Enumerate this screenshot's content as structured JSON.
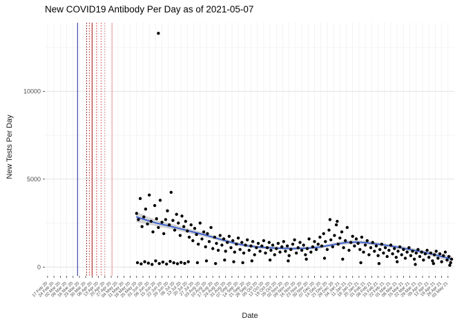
{
  "chart_data": {
    "type": "scatter",
    "title": "New COVID19 Antibody Per Day as of 2021-05-07",
    "xlabel": "Date",
    "ylabel": "New Tests Per Day",
    "legend": "none",
    "grid": true,
    "y_ticks": [
      0,
      5000,
      10000
    ],
    "y_tick_labels": [
      "0",
      "5000",
      "10000"
    ],
    "y_minor": [
      2500,
      7500,
      12500
    ],
    "ylim": [
      -500,
      13900
    ],
    "xlim": [
      -3,
      448
    ],
    "x_tick_interval_days": 7,
    "x_tick_labels": [
      "17 Feb 20",
      "24 Feb 20",
      "02 Mar 20",
      "09 Mar 20",
      "16 Mar 20",
      "23 Mar 20",
      "30 Mar 20",
      "06 Apr 20",
      "13 Apr 20",
      "20 Apr 20",
      "27 Apr 20",
      "04 May 20",
      "11 May 20",
      "18 May 20",
      "25 May 20",
      "01 Jun 20",
      "08 Jun 20",
      "15 Jun 20",
      "22 Jun 20",
      "29 Jun 20",
      "06 Jul 20",
      "13 Jul 20",
      "20 Jul 20",
      "27 Jul 20",
      "03 Aug 20",
      "10 Aug 20",
      "17 Aug 20",
      "24 Aug 20",
      "31 Aug 20",
      "07 Sep 20",
      "14 Sep 20",
      "21 Sep 20",
      "28 Sep 20",
      "05 Oct 20",
      "12 Oct 20",
      "19 Oct 20",
      "26 Oct 20",
      "02 Nov 20",
      "09 Nov 20",
      "16 Nov 20",
      "23 Nov 20",
      "30 Nov 20",
      "07 Dec 20",
      "14 Dec 20",
      "21 Dec 20",
      "28 Dec 20",
      "04 Jan 21",
      "11 Jan 21",
      "18 Jan 21",
      "25 Jan 21",
      "01 Feb 21",
      "08 Feb 21",
      "15 Feb 21",
      "22 Feb 21",
      "01 Mar 21",
      "08 Mar 21",
      "15 Mar 21",
      "22 Mar 21",
      "29 Mar 21",
      "05 Apr 21",
      "12 Apr 21",
      "19 Apr 21",
      "26 Apr 21",
      "03 May 21"
    ],
    "colors": {
      "point": "#000000",
      "trend": "#3a5fcd",
      "band": "#9e9e9e",
      "grid_major": "#e2e2e2",
      "grid_minor": "#f0f0f0",
      "axis_text": "#4d4d4d",
      "tick_mark": "#333333"
    },
    "reference_lines": [
      {
        "day": 33,
        "color": "#3333aa",
        "dash": "solid"
      },
      {
        "day": 43,
        "color": "#8b0000",
        "dash": "dotted"
      },
      {
        "day": 46,
        "color": "#cc2222",
        "dash": "dotted"
      },
      {
        "day": 49,
        "color": "#b22222",
        "dash": "solid"
      },
      {
        "day": 54,
        "color": "#cc2222",
        "dash": "dotted"
      },
      {
        "day": 59,
        "color": "#d04444",
        "dash": "dotted"
      },
      {
        "day": 63,
        "color": "#d97777",
        "dash": "dotted"
      },
      {
        "day": 71,
        "color": "#efa0a0",
        "dash": "solid"
      }
    ],
    "smooth": [
      [
        98,
        2850,
        300
      ],
      [
        110,
        2650,
        220
      ],
      [
        120,
        2500,
        180
      ],
      [
        130,
        2380,
        160
      ],
      [
        140,
        2260,
        150
      ],
      [
        150,
        2130,
        140
      ],
      [
        160,
        2000,
        130
      ],
      [
        170,
        1870,
        120
      ],
      [
        180,
        1730,
        110
      ],
      [
        190,
        1580,
        105
      ],
      [
        200,
        1440,
        100
      ],
      [
        210,
        1310,
        95
      ],
      [
        220,
        1210,
        95
      ],
      [
        230,
        1150,
        90
      ],
      [
        240,
        1110,
        90
      ],
      [
        250,
        1080,
        90
      ],
      [
        260,
        1060,
        90
      ],
      [
        270,
        1050,
        90
      ],
      [
        280,
        1060,
        90
      ],
      [
        290,
        1090,
        90
      ],
      [
        300,
        1140,
        95
      ],
      [
        310,
        1230,
        100
      ],
      [
        320,
        1330,
        105
      ],
      [
        330,
        1400,
        110
      ],
      [
        340,
        1420,
        110
      ],
      [
        350,
        1390,
        105
      ],
      [
        360,
        1330,
        100
      ],
      [
        370,
        1260,
        100
      ],
      [
        380,
        1180,
        100
      ],
      [
        390,
        1090,
        100
      ],
      [
        400,
        990,
        105
      ],
      [
        410,
        890,
        110
      ],
      [
        420,
        780,
        120
      ],
      [
        430,
        650,
        140
      ],
      [
        440,
        520,
        170
      ],
      [
        445,
        450,
        200
      ]
    ],
    "points": [
      [
        98,
        3050
      ],
      [
        100,
        2700
      ],
      [
        102,
        3900
      ],
      [
        104,
        2300
      ],
      [
        106,
        2850
      ],
      [
        108,
        3300
      ],
      [
        110,
        2450
      ],
      [
        112,
        4100
      ],
      [
        114,
        2600
      ],
      [
        116,
        2000
      ],
      [
        118,
        3500
      ],
      [
        120,
        2750
      ],
      [
        122,
        2250
      ],
      [
        124,
        3800
      ],
      [
        126,
        2550
      ],
      [
        128,
        1900
      ],
      [
        130,
        2700
      ],
      [
        132,
        3200
      ],
      [
        134,
        2400
      ],
      [
        136,
        4250
      ],
      [
        138,
        2650
      ],
      [
        140,
        2100
      ],
      [
        142,
        3000
      ],
      [
        144,
        2500
      ],
      [
        146,
        1800
      ],
      [
        148,
        2900
      ],
      [
        150,
        2300
      ],
      [
        99,
        250
      ],
      [
        103,
        180
      ],
      [
        107,
        300
      ],
      [
        111,
        220
      ],
      [
        115,
        150
      ],
      [
        119,
        350
      ],
      [
        123,
        200
      ],
      [
        127,
        280
      ],
      [
        131,
        170
      ],
      [
        135,
        320
      ],
      [
        139,
        240
      ],
      [
        143,
        190
      ],
      [
        147,
        260
      ],
      [
        151,
        210
      ],
      [
        122,
        13300
      ],
      [
        152,
        2600
      ],
      [
        154,
        2050
      ],
      [
        156,
        1700
      ],
      [
        158,
        2400
      ],
      [
        160,
        1500
      ],
      [
        162,
        2200
      ],
      [
        164,
        1850
      ],
      [
        166,
        1300
      ],
      [
        168,
        2500
      ],
      [
        170,
        1600
      ],
      [
        172,
        2000
      ],
      [
        174,
        1150
      ],
      [
        176,
        1900
      ],
      [
        178,
        1450
      ],
      [
        180,
        2250
      ],
      [
        182,
        1050
      ],
      [
        184,
        1700
      ],
      [
        186,
        1350
      ],
      [
        188,
        950
      ],
      [
        190,
        1800
      ],
      [
        192,
        1250
      ],
      [
        194,
        1600
      ],
      [
        196,
        900
      ],
      [
        198,
        1400
      ],
      [
        200,
        1750
      ],
      [
        202,
        1100
      ],
      [
        204,
        1500
      ],
      [
        206,
        850
      ],
      [
        208,
        1300
      ],
      [
        210,
        1650
      ],
      [
        212,
        1000
      ],
      [
        214,
        1400
      ],
      [
        216,
        800
      ],
      [
        218,
        1250
      ],
      [
        220,
        1550
      ],
      [
        222,
        950
      ],
      [
        224,
        1200
      ],
      [
        226,
        1450
      ],
      [
        228,
        700
      ],
      [
        230,
        1100
      ],
      [
        155,
        300
      ],
      [
        165,
        250
      ],
      [
        175,
        350
      ],
      [
        185,
        200
      ],
      [
        195,
        400
      ],
      [
        205,
        300
      ],
      [
        215,
        250
      ],
      [
        225,
        350
      ],
      [
        232,
        1350
      ],
      [
        234,
        900
      ],
      [
        236,
        1200
      ],
      [
        238,
        1500
      ],
      [
        240,
        800
      ],
      [
        242,
        1100
      ],
      [
        244,
        1400
      ],
      [
        246,
        950
      ],
      [
        248,
        1250
      ],
      [
        250,
        700
      ],
      [
        252,
        1050
      ],
      [
        254,
        1350
      ],
      [
        256,
        850
      ],
      [
        258,
        1150
      ],
      [
        260,
        1450
      ],
      [
        262,
        900
      ],
      [
        264,
        1200
      ],
      [
        266,
        650
      ],
      [
        268,
        1000
      ],
      [
        270,
        1300
      ],
      [
        272,
        1550
      ],
      [
        274,
        800
      ],
      [
        276,
        1100
      ],
      [
        278,
        1400
      ],
      [
        280,
        950
      ],
      [
        282,
        1250
      ],
      [
        284,
        700
      ],
      [
        286,
        1050
      ],
      [
        288,
        1600
      ],
      [
        290,
        850
      ],
      [
        292,
        1150
      ],
      [
        294,
        1450
      ],
      [
        296,
        1000
      ],
      [
        298,
        1300
      ],
      [
        300,
        1700
      ],
      [
        245,
        400
      ],
      [
        265,
        350
      ],
      [
        285,
        450
      ],
      [
        302,
        1200
      ],
      [
        304,
        1900
      ],
      [
        306,
        1450
      ],
      [
        308,
        1000
      ],
      [
        310,
        2100
      ],
      [
        311,
        2700
      ],
      [
        312,
        1550
      ],
      [
        314,
        1150
      ],
      [
        316,
        1800
      ],
      [
        318,
        2400
      ],
      [
        319,
        2600
      ],
      [
        320,
        1300
      ],
      [
        322,
        1650
      ],
      [
        324,
        2000
      ],
      [
        326,
        1100
      ],
      [
        328,
        1500
      ],
      [
        330,
        2250
      ],
      [
        332,
        950
      ],
      [
        334,
        1400
      ],
      [
        336,
        1750
      ],
      [
        338,
        1200
      ],
      [
        340,
        1600
      ],
      [
        305,
        500
      ],
      [
        325,
        450
      ],
      [
        342,
        1350
      ],
      [
        344,
        1000
      ],
      [
        346,
        1700
      ],
      [
        348,
        850
      ],
      [
        350,
        1250
      ],
      [
        352,
        1500
      ],
      [
        354,
        700
      ],
      [
        356,
        1100
      ],
      [
        358,
        1400
      ],
      [
        360,
        900
      ],
      [
        362,
        1200
      ],
      [
        364,
        650
      ],
      [
        366,
        1000
      ],
      [
        368,
        1300
      ],
      [
        370,
        800
      ],
      [
        372,
        1100
      ],
      [
        374,
        600
      ],
      [
        376,
        950
      ],
      [
        378,
        1250
      ],
      [
        380,
        750
      ],
      [
        382,
        1050
      ],
      [
        384,
        550
      ],
      [
        386,
        900
      ],
      [
        388,
        1150
      ],
      [
        390,
        700
      ],
      [
        392,
        1000
      ],
      [
        394,
        500
      ],
      [
        396,
        850
      ],
      [
        398,
        1100
      ],
      [
        400,
        650
      ],
      [
        402,
        900
      ],
      [
        404,
        450
      ],
      [
        406,
        800
      ],
      [
        408,
        1000
      ],
      [
        410,
        600
      ],
      [
        412,
        850
      ],
      [
        414,
        400
      ],
      [
        416,
        750
      ],
      [
        418,
        950
      ],
      [
        420,
        550
      ],
      [
        422,
        800
      ],
      [
        424,
        350
      ],
      [
        426,
        700
      ],
      [
        428,
        900
      ],
      [
        430,
        500
      ],
      [
        432,
        750
      ],
      [
        434,
        300
      ],
      [
        436,
        650
      ],
      [
        438,
        850
      ],
      [
        440,
        400
      ],
      [
        442,
        600
      ],
      [
        444,
        250
      ],
      [
        445,
        450
      ],
      [
        345,
        250
      ],
      [
        365,
        200
      ],
      [
        385,
        300
      ],
      [
        405,
        150
      ],
      [
        425,
        200
      ],
      [
        443,
        100
      ]
    ]
  }
}
